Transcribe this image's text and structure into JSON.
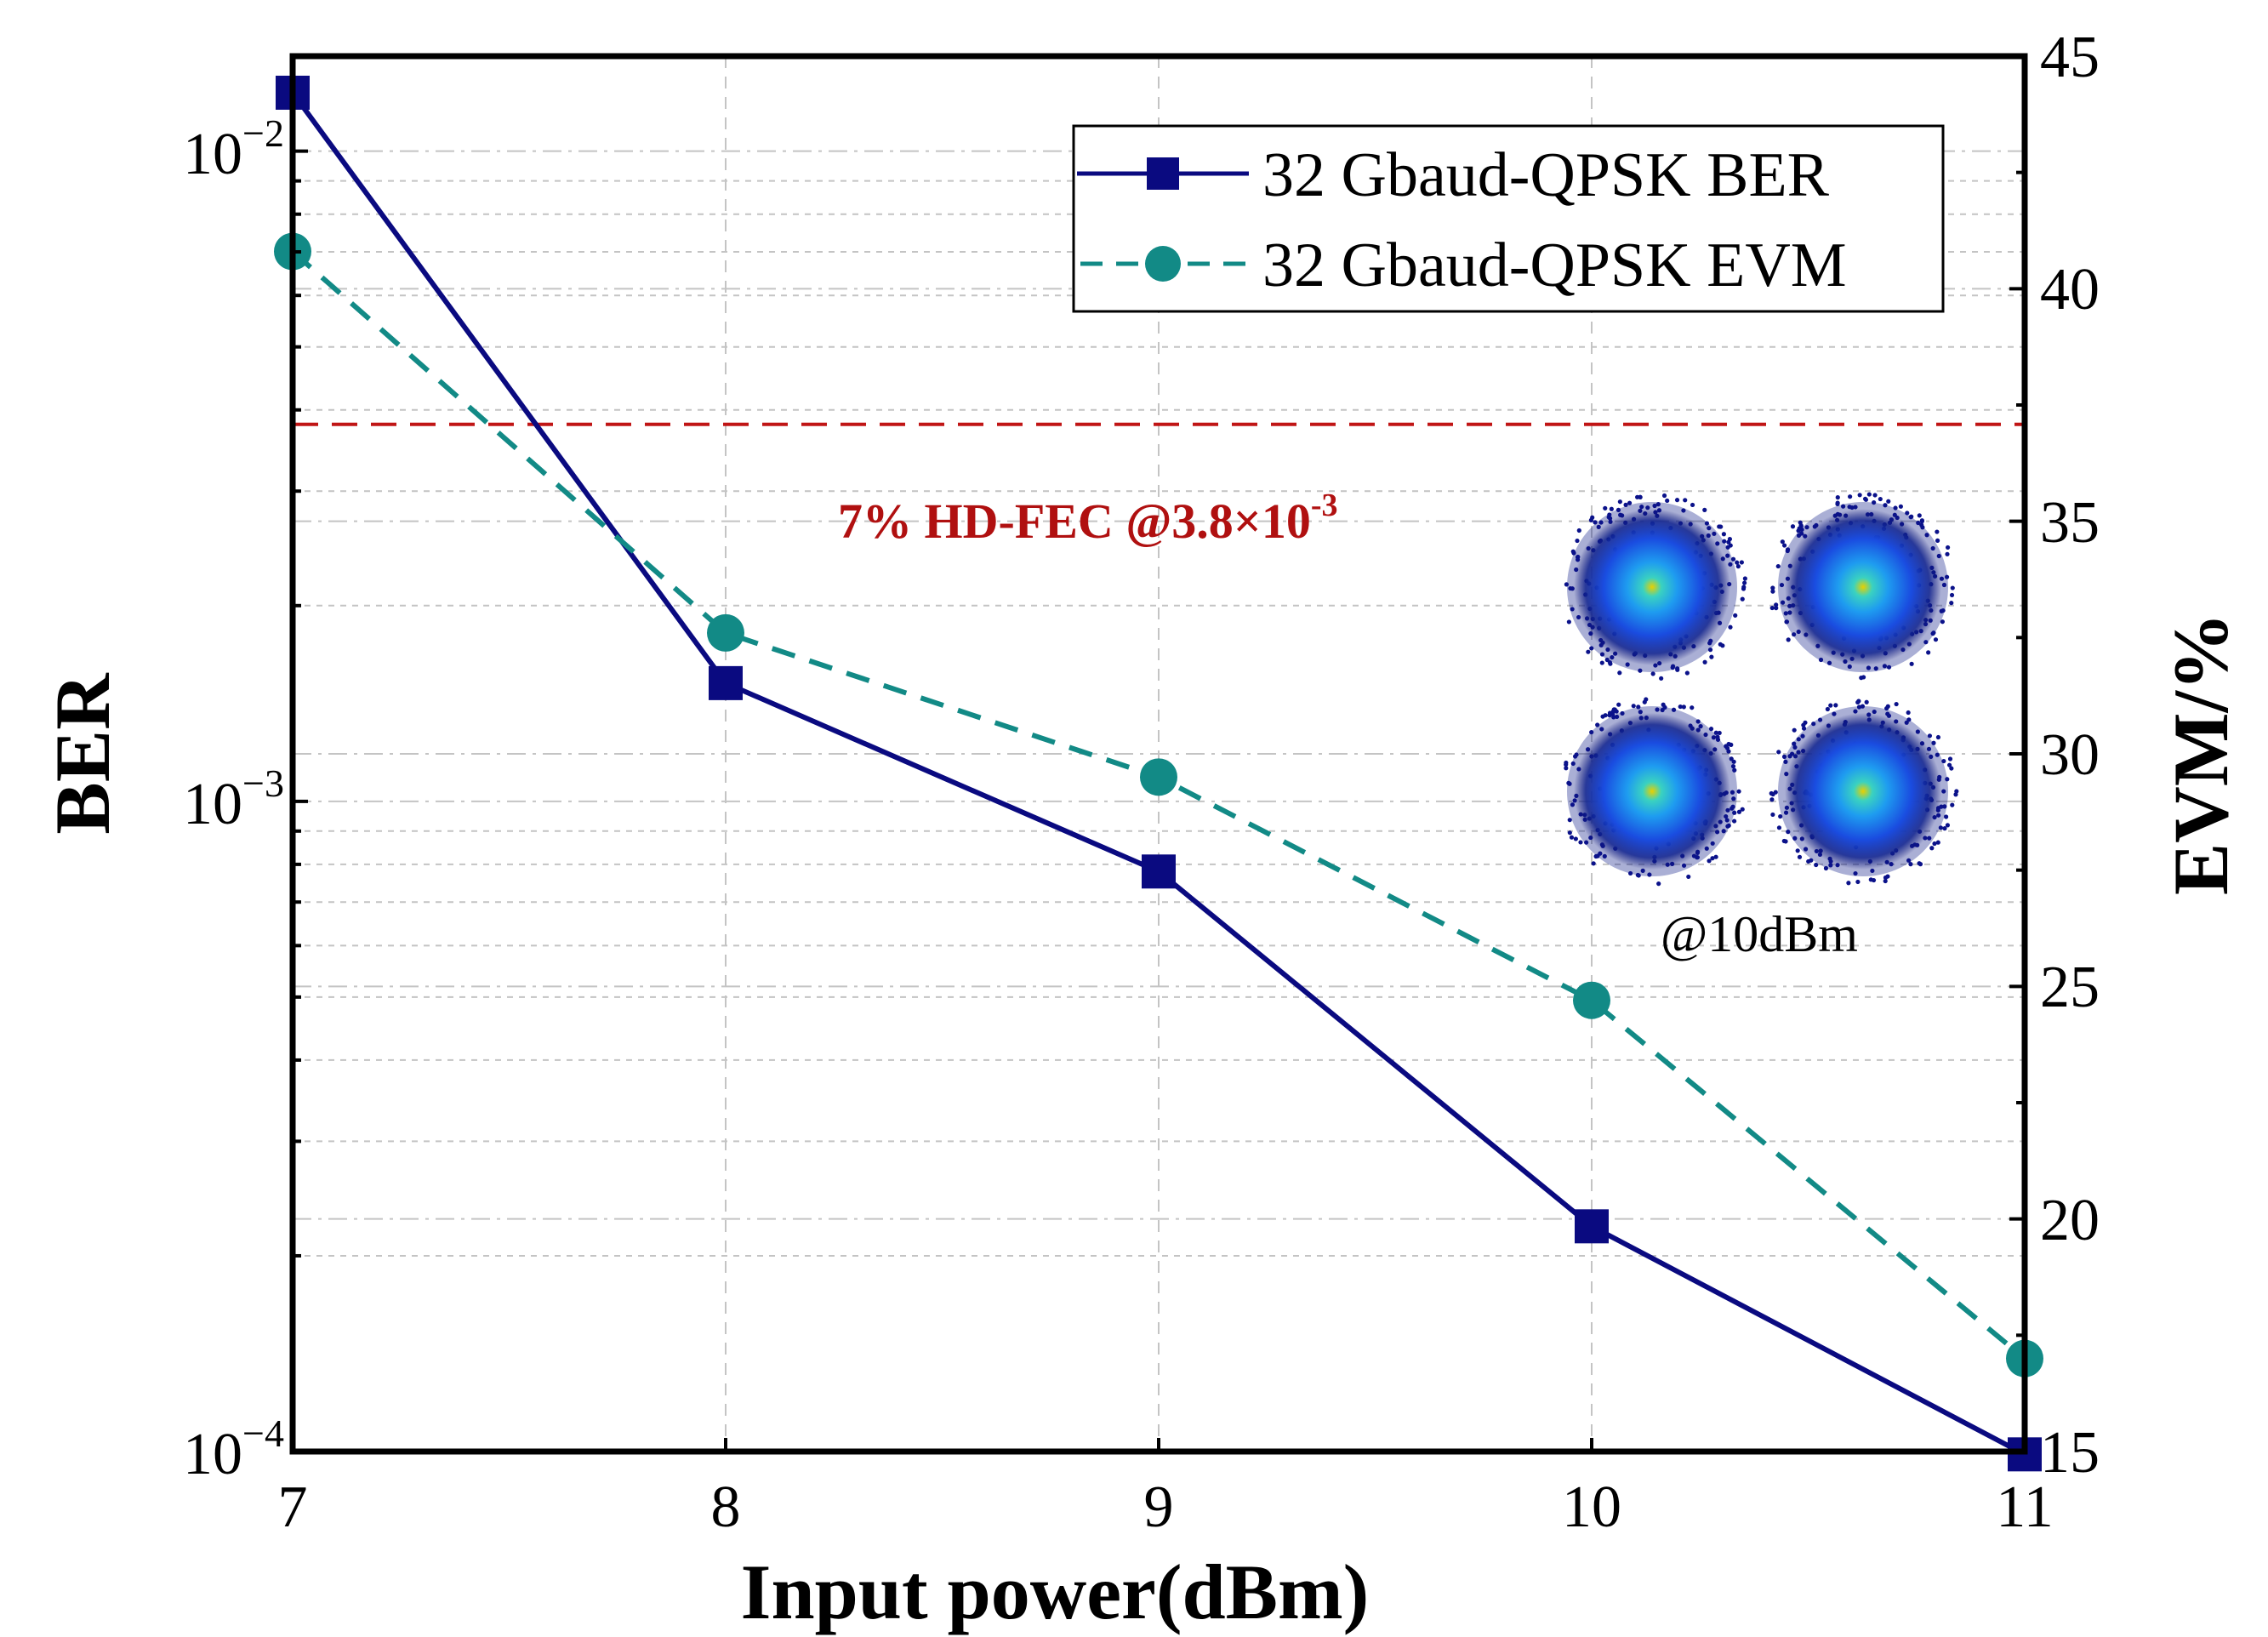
{
  "chart_data": {
    "type": "line",
    "x": [
      7,
      8,
      9,
      10,
      11
    ],
    "xlabel": "Input power(dBm)",
    "xlim": [
      7,
      11
    ],
    "x_ticks": [
      "7",
      "8",
      "9",
      "10",
      "11"
    ],
    "y_left": {
      "label": "BER",
      "scale": "log",
      "lim": [
        0.0001,
        0.014
      ],
      "ticks": [
        {
          "value": 0.01,
          "base": "10",
          "exp": "−2"
        },
        {
          "value": 0.001,
          "base": "10",
          "exp": "−3"
        },
        {
          "value": 0.0001,
          "base": "10",
          "exp": "−4"
        }
      ]
    },
    "y_right": {
      "label": "EVM/%",
      "scale": "linear",
      "lim": [
        15,
        45
      ],
      "ticks": [
        "15",
        "20",
        "25",
        "30",
        "35",
        "40",
        "45"
      ]
    },
    "series": [
      {
        "name": "32 Gbaud-QPSK BER",
        "axis": "left",
        "values": [
          0.0123,
          0.00152,
          0.00078,
          0.000222,
          9.9e-05
        ],
        "color": "#0a0a80",
        "marker": "square",
        "line": "solid"
      },
      {
        "name": "32 Gbaud-QPSK EVM",
        "axis": "right",
        "values": [
          40.8,
          32.6,
          29.5,
          24.7,
          17.0
        ],
        "color": "#128a86",
        "marker": "circle",
        "line": "dashed"
      }
    ],
    "threshold": {
      "value": 0.0038,
      "label_main": "7% HD-FEC @3.8×10",
      "label_exp": "-3",
      "color": "#c01515"
    },
    "inset_label": "@10dBm",
    "grid": true,
    "legend_position": "top-right"
  }
}
